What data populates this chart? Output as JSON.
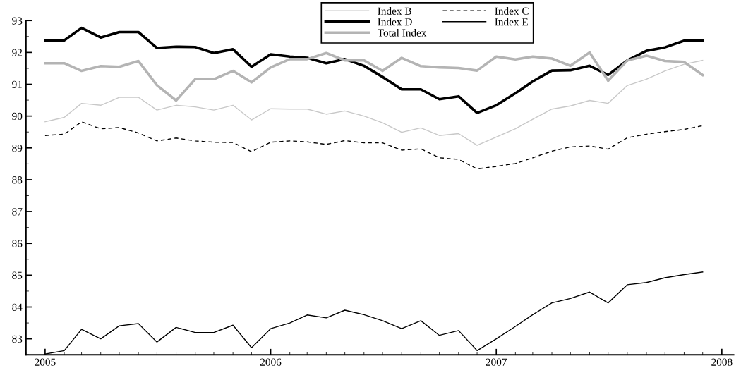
{
  "chart_data": {
    "type": "line",
    "x": [
      "2005-01",
      "2005-02",
      "2005-03",
      "2005-04",
      "2005-05",
      "2005-06",
      "2005-07",
      "2005-08",
      "2005-09",
      "2005-10",
      "2005-11",
      "2005-12",
      "2006-01",
      "2006-02",
      "2006-03",
      "2006-04",
      "2006-05",
      "2006-06",
      "2006-07",
      "2006-08",
      "2006-09",
      "2006-10",
      "2006-11",
      "2006-12",
      "2007-01",
      "2007-02",
      "2007-03",
      "2007-04",
      "2007-05",
      "2007-06",
      "2007-07",
      "2007-08",
      "2007-09",
      "2007-10",
      "2007-11",
      "2007-12"
    ],
    "series": [
      {
        "name": "Index B",
        "color": "#c8c8c8",
        "line_style": "solid",
        "values": [
          89.82,
          89.96,
          90.4,
          90.34,
          90.59,
          90.59,
          90.19,
          90.34,
          90.29,
          90.19,
          90.34,
          89.88,
          90.23,
          90.22,
          90.22,
          90.06,
          90.16,
          90.0,
          89.79,
          89.49,
          89.63,
          89.39,
          89.45,
          89.08,
          89.34,
          89.6,
          89.9,
          90.22,
          90.32,
          90.49,
          90.4,
          90.96,
          91.16,
          91.42,
          91.63,
          91.75
        ]
      },
      {
        "name": "Index C",
        "color": "#000000",
        "line_style": "dashed",
        "values": [
          89.39,
          89.43,
          89.82,
          89.6,
          89.64,
          89.47,
          89.22,
          89.31,
          89.22,
          89.18,
          89.17,
          88.88,
          89.18,
          89.22,
          89.19,
          89.11,
          89.23,
          89.16,
          89.16,
          88.93,
          88.97,
          88.69,
          88.64,
          88.34,
          88.42,
          88.51,
          88.69,
          88.9,
          89.03,
          89.06,
          88.96,
          89.32,
          89.43,
          89.51,
          89.58,
          89.7
        ]
      },
      {
        "name": "Index D",
        "color": "#000000",
        "line_style": "solid",
        "values": [
          92.38,
          92.38,
          92.77,
          92.47,
          92.64,
          92.64,
          92.14,
          92.18,
          92.17,
          91.98,
          92.1,
          91.55,
          91.94,
          91.87,
          91.83,
          91.66,
          91.79,
          91.58,
          91.23,
          90.84,
          90.84,
          90.53,
          90.62,
          90.1,
          90.34,
          90.72,
          91.09,
          91.43,
          91.44,
          91.58,
          91.29,
          91.75,
          92.05,
          92.16,
          92.37,
          92.37
        ]
      },
      {
        "name": "Index E",
        "color": "#000000",
        "line_style": "solid",
        "values": [
          82.52,
          82.63,
          83.3,
          83.0,
          83.41,
          83.48,
          82.9,
          83.36,
          83.2,
          83.2,
          83.43,
          82.72,
          83.32,
          83.5,
          83.75,
          83.66,
          83.9,
          83.76,
          83.57,
          83.32,
          83.57,
          83.11,
          83.26,
          82.63,
          83.0,
          83.39,
          83.76,
          84.13,
          84.27,
          84.47,
          84.13,
          84.7,
          84.77,
          84.92,
          85.02,
          85.1
        ]
      },
      {
        "name": "Total Index",
        "color": "#b4b4b4",
        "line_style": "solid",
        "values": [
          91.66,
          91.66,
          91.42,
          91.57,
          91.55,
          91.73,
          90.97,
          90.49,
          91.16,
          91.16,
          91.42,
          91.06,
          91.53,
          91.79,
          91.79,
          91.98,
          91.75,
          91.75,
          91.42,
          91.83,
          91.57,
          91.53,
          91.51,
          91.43,
          91.87,
          91.78,
          91.87,
          91.81,
          91.58,
          92.0,
          91.11,
          91.75,
          91.9,
          91.73,
          91.7,
          91.29
        ]
      }
    ],
    "xlim": [
      "2004-12-01",
      "2008-01-20"
    ],
    "xticks": [
      {
        "value": "2005-01-01",
        "label": "2005"
      },
      {
        "value": "2006-01-01",
        "label": "2006"
      },
      {
        "value": "2007-01-01",
        "label": "2007"
      },
      {
        "value": "2008-01-01",
        "label": "2008"
      }
    ],
    "ylim": [
      82.5,
      93
    ],
    "yticks": [
      83,
      84,
      85,
      86,
      87,
      88,
      89,
      90,
      91,
      92,
      93
    ],
    "grid": false,
    "legend": "top right",
    "marker": "none"
  }
}
